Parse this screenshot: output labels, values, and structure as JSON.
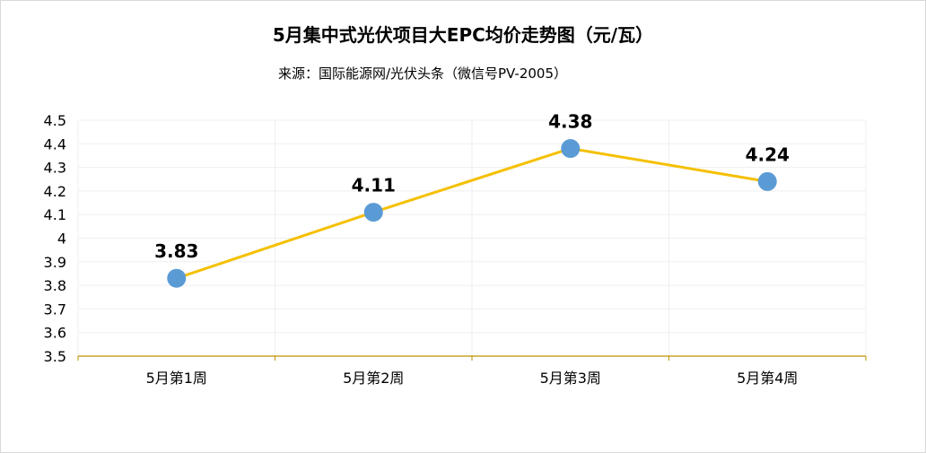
{
  "chart_data": {
    "type": "line",
    "title": "5月集中式光伏项目大EPC均价走势图（元/瓦）",
    "subtitle": "来源：国际能源网/光伏头条（微信号PV-2005）",
    "categories": [
      "5月第1周",
      "5月第2周",
      "5月第3周",
      "5月第4周"
    ],
    "series": [
      {
        "values": [
          3.83,
          4.11,
          4.38,
          4.24
        ]
      }
    ],
    "data_labels": [
      "3.83",
      "4.11",
      "4.38",
      "4.24"
    ],
    "y_ticks": [
      "3.5",
      "3.6",
      "3.7",
      "3.8",
      "3.9",
      "4",
      "4.1",
      "4.2",
      "4.3",
      "4.4",
      "4.5"
    ],
    "ylim": [
      3.5,
      4.5
    ],
    "grid": true,
    "legend": "none",
    "colors": {
      "line": "#F5C000",
      "marker": "#5B9BD5",
      "axis": "#BF9000",
      "grid": "#EFEFEF"
    }
  }
}
